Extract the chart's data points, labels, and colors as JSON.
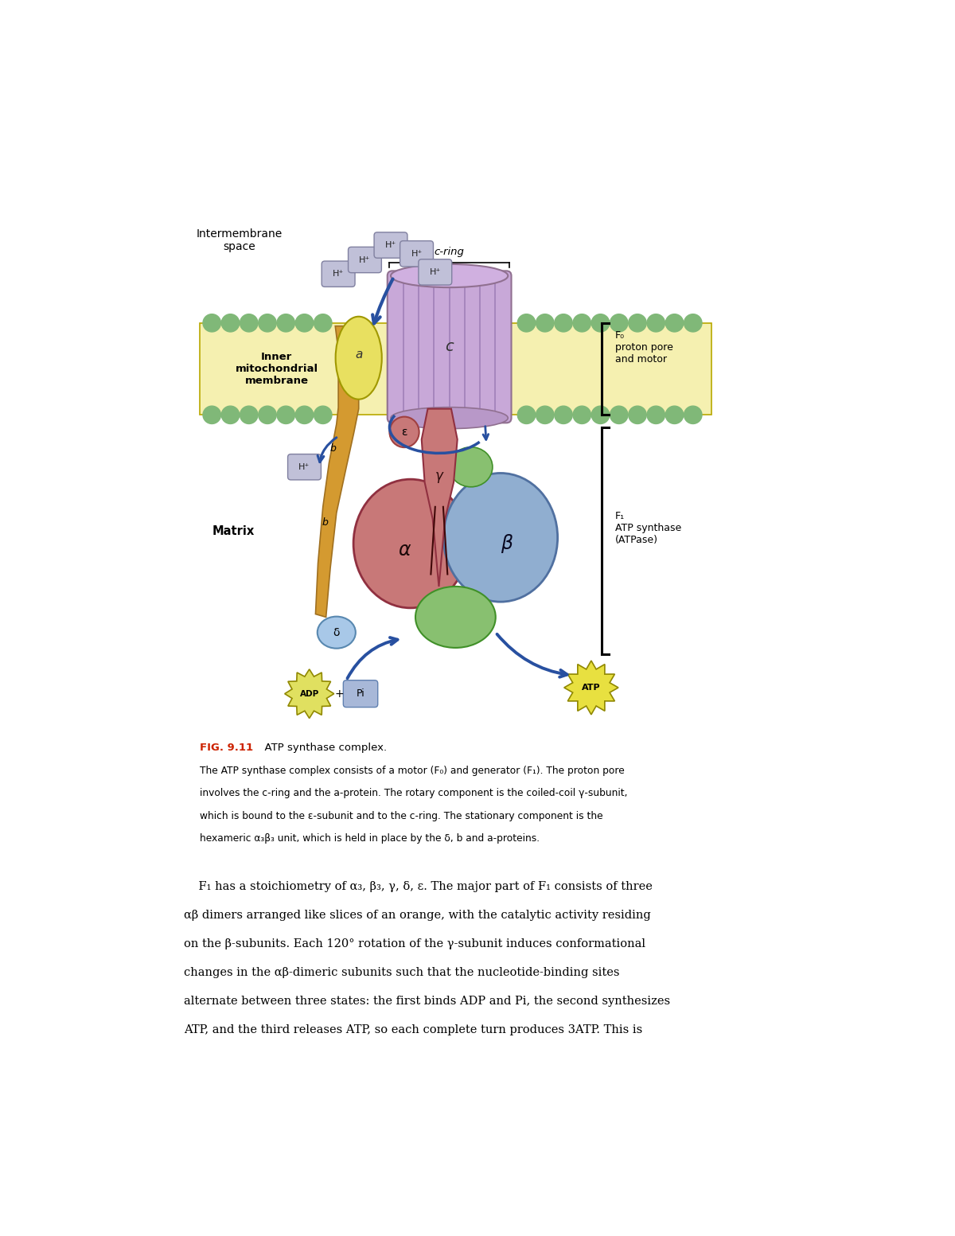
{
  "fig_width": 12.0,
  "fig_height": 15.53,
  "bg_color": "#ffffff",
  "membrane_color": "#f5f0b0",
  "membrane_border_color": "#c8b400",
  "lipid_head_color": "#80b878",
  "c_ring_color": "#c8a8d8",
  "a_subunit_color": "#e8e060",
  "b_subunit_color": "#d49a30",
  "delta_subunit_color": "#a8c8e8",
  "epsilon_subunit_color": "#c87878",
  "gamma_subunit_color": "#c87878",
  "alpha_subunit_color": "#c87878",
  "beta_subunit_color": "#90aed0",
  "green_subunit_color": "#88c070",
  "hplus_color": "#c0c0d8",
  "arrow_color": "#2850a0",
  "adp_color": "#e0e060",
  "atp_color": "#e8e040",
  "pi_color": "#a8b8d8",
  "fig_label_color": "#cc2200",
  "caption_line2": "The ATP synthase complex consists of a motor (F₀) and generator (F₁). The proton pore",
  "caption_line3": "involves the c-ring and the a-protein. The rotary component is the coiled-coil γ-subunit,",
  "caption_line4": "which is bound to the ε-subunit and to the c-ring. The stationary component is the",
  "caption_line5": "hexameric α₃β₃ unit, which is held in place by the δ, b and a-proteins.",
  "body_line1": "F₁ has a stoichiometry of α₃, β₃, γ, δ, ε. The major part of F₁ consists of three",
  "body_line2": "αβ dimers arranged like slices of an orange, with the catalytic activity residing",
  "body_line3": "on the β-subunits. Each 120° rotation of the γ-subunit induces conformational",
  "body_line4": "changes in the αβ-dimeric subunits such that the nucleotide-binding sites",
  "body_line5": "alternate between three states: the first binds ADP and Pi, the second synthesizes",
  "body_line6": "ATP, and the third releases ATP, so each complete turn produces 3ATP. This is"
}
